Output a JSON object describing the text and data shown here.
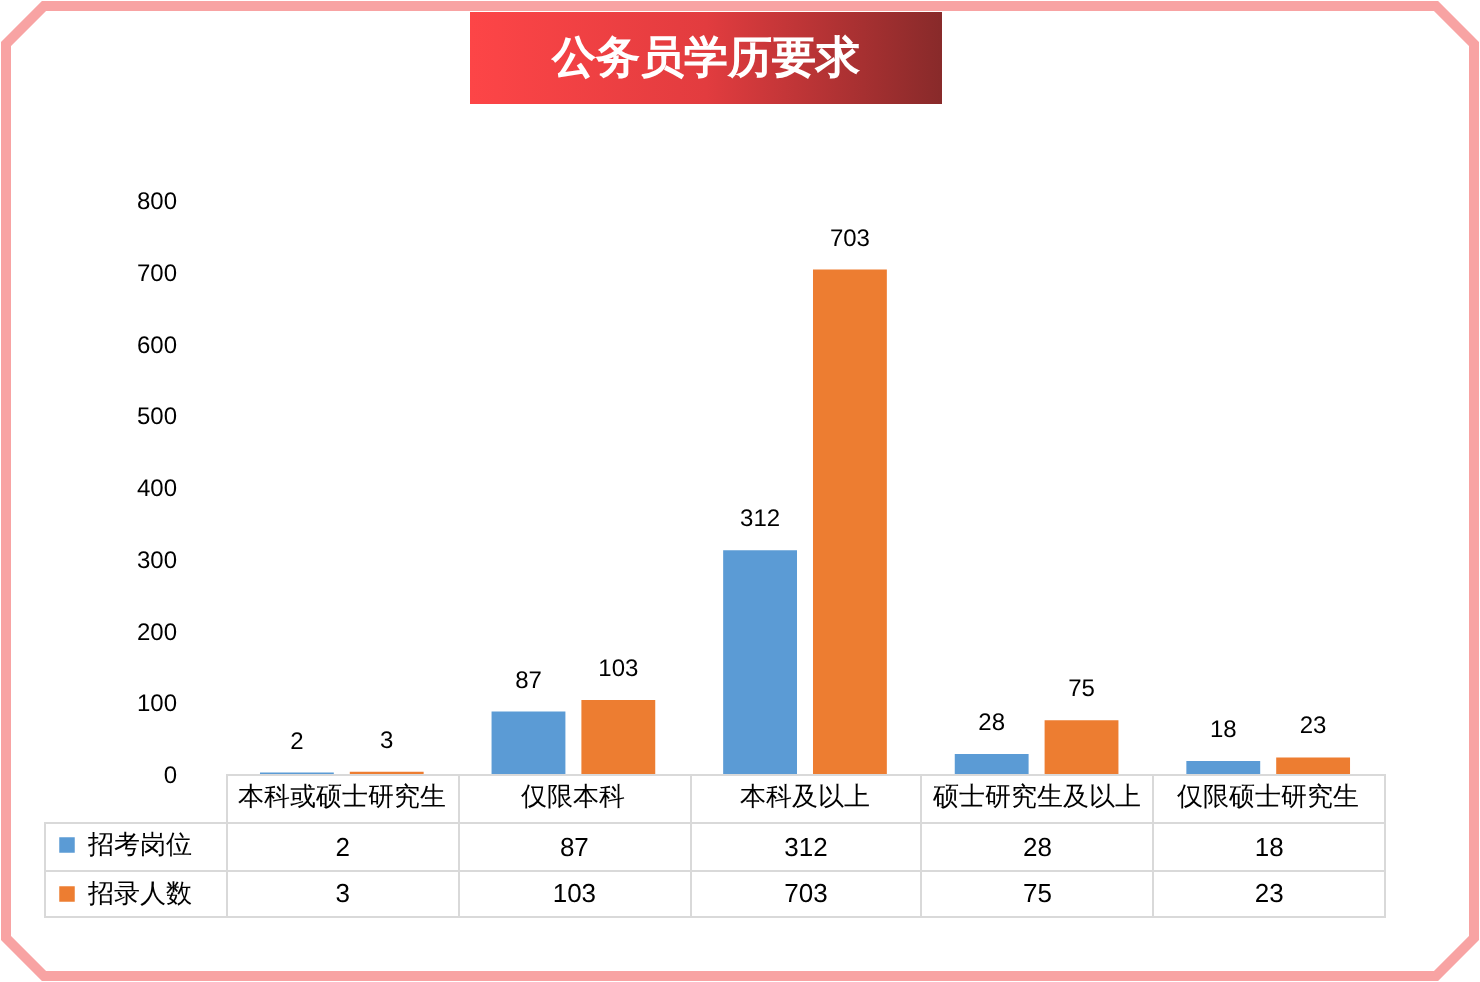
{
  "chart_data": [
    {
      "type": "bar",
      "title": "公务员学历要求",
      "categories": [
        "本科或硕士研究生",
        "仅限本科",
        "本科及以上",
        "硕士研究生及以上",
        "仅限硕士研究生"
      ],
      "series": [
        {
          "name": "招考岗位",
          "color": "#5b9bd5",
          "values": [
            2,
            87,
            312,
            28,
            18
          ],
          "value_labels": [
            "2",
            "87",
            "312",
            "28",
            "18"
          ]
        },
        {
          "name": "招录人数",
          "color": "#ed7d31",
          "values": [
            3,
            103,
            703,
            75,
            23
          ],
          "value_labels": [
            "3",
            "103",
            "703",
            "75",
            "23"
          ]
        }
      ],
      "ylim": [
        0,
        800
      ],
      "yticks": [
        0,
        100,
        200,
        300,
        400,
        500,
        600,
        700,
        800
      ],
      "grid": false,
      "legend": "bottom"
    },
    {
      "type": "other",
      "annotations": [
        "2",
        "87",
        "312",
        "28",
        "18",
        "3",
        "103",
        "703",
        "75",
        "23"
      ]
    }
  ]
}
